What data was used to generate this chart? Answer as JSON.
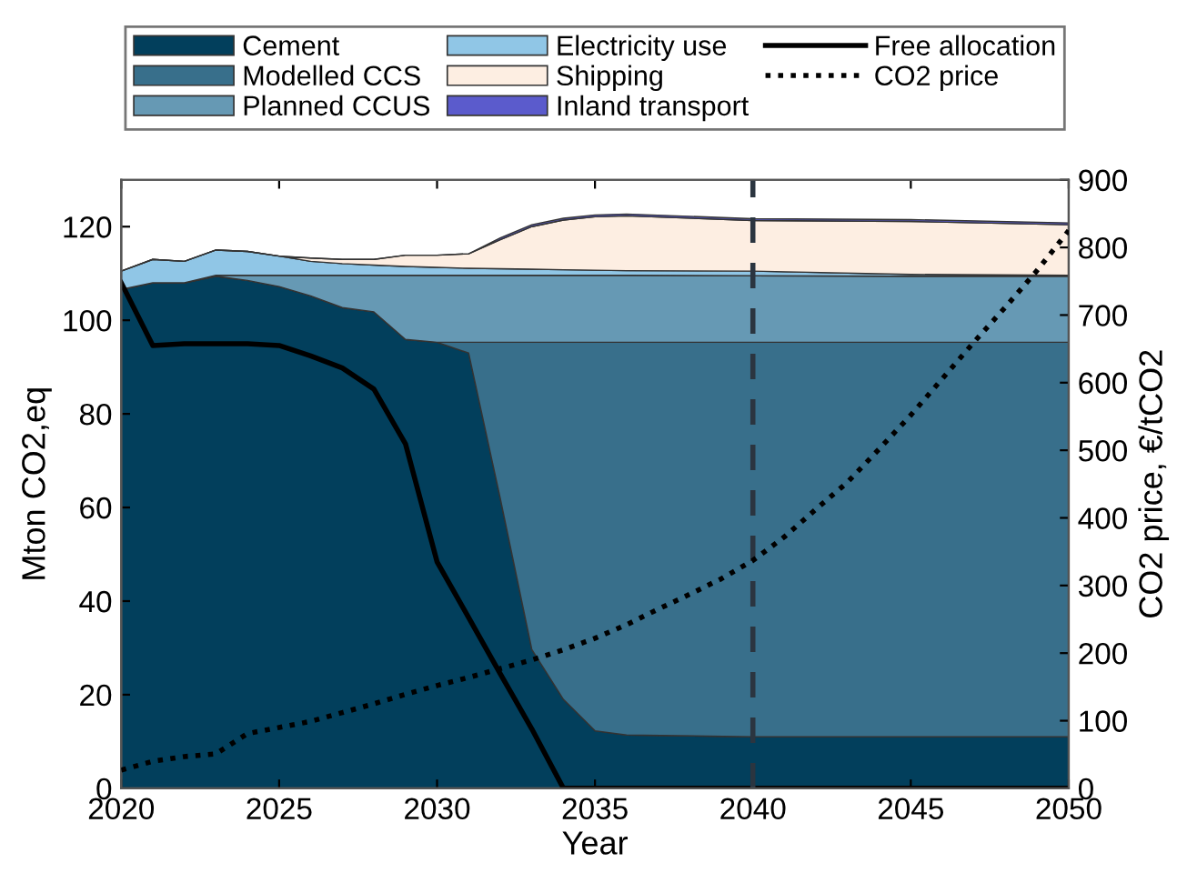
{
  "chart_data": {
    "type": "area",
    "stacked": true,
    "xlabel": "Year",
    "ylabel": "Mton CO2,eq",
    "y2label": "CO2 price, €/tCO2",
    "x": [
      2020,
      2021,
      2022,
      2023,
      2024,
      2025,
      2026,
      2027,
      2028,
      2029,
      2030,
      2031,
      2032,
      2033,
      2034,
      2035,
      2036,
      2040,
      2045,
      2050
    ],
    "series": [
      {
        "name": "Cement",
        "color": "#023f5c",
        "values": [
          106.6,
          108,
          108,
          109.4,
          108.5,
          107.2,
          105.2,
          102.7,
          101.8,
          95.9,
          95.3,
          93.0,
          62,
          29.7,
          19,
          12.3,
          11.4,
          11,
          11,
          11
        ]
      },
      {
        "name": "Modelled CCS",
        "color": "#386f8b",
        "values": [
          0,
          0,
          0,
          0,
          0,
          0,
          0,
          0,
          0,
          0,
          0,
          2.3,
          33.3,
          65.6,
          76.3,
          83.0,
          83.9,
          84.3,
          84.3,
          84.3
        ]
      },
      {
        "name": "Planned CCUS",
        "color": "#6699b4",
        "values": [
          0,
          0,
          0,
          0.2,
          1.1,
          2.4,
          4.4,
          6.9,
          7.8,
          13.7,
          14.3,
          14.3,
          14.3,
          14.3,
          14.3,
          14.3,
          14.3,
          14.2,
          14.1,
          14.1
        ]
      },
      {
        "name": "Electricity use",
        "color": "#90c6e6",
        "values": [
          3.9,
          5.0,
          4.6,
          5.4,
          5.1,
          4.1,
          3.0,
          2.5,
          2.2,
          1.9,
          1.7,
          1.5,
          1.4,
          1.3,
          1.2,
          1.1,
          1.0,
          1.0,
          0.4,
          0.2
        ]
      },
      {
        "name": "Shipping",
        "color": "#fdeee2",
        "values": [
          0,
          0,
          0,
          0,
          0,
          0,
          0.7,
          0.9,
          1.2,
          2.4,
          2.6,
          3.1,
          6.2,
          9.1,
          10.6,
          11.4,
          11.7,
          10.8,
          11.3,
          10.8
        ]
      },
      {
        "name": "Inland transport",
        "color": "#5b5bcc",
        "values": [
          0,
          0,
          0,
          0,
          0,
          0,
          0,
          0,
          0,
          0,
          0,
          0,
          0.4,
          0.4,
          0.4,
          0.4,
          0.4,
          0.4,
          0.4,
          0.4
        ]
      },
      {
        "name": "Free allocation",
        "type": "line",
        "color": "#000000",
        "line_style": "solid",
        "x": [
          2020,
          2021,
          2022,
          2023,
          2024,
          2025,
          2026,
          2027,
          2028,
          2029,
          2030,
          2031,
          2032,
          2033,
          2034,
          2050
        ],
        "values": [
          108,
          94.6,
          95,
          95,
          95,
          94.6,
          92.4,
          89.8,
          85.3,
          73.6,
          48.4,
          36.5,
          24.5,
          12.7,
          0,
          0
        ]
      },
      {
        "name": "CO2 price",
        "type": "line",
        "axis": "y2",
        "color": "#000000",
        "line_style": "dotted",
        "x": [
          2020,
          2021,
          2022,
          2023,
          2024,
          2025,
          2026,
          2027,
          2028,
          2029,
          2030,
          2031,
          2032,
          2033,
          2034,
          2035,
          2036,
          2037,
          2038,
          2039,
          2040,
          2041,
          2042,
          2043,
          2044,
          2045,
          2046,
          2047,
          2048,
          2049,
          2050
        ],
        "values": [
          27,
          40,
          47,
          51,
          81,
          90,
          99,
          112,
          125,
          139,
          152,
          164,
          177,
          190,
          205,
          222,
          242,
          265,
          287,
          310,
          337,
          372,
          413,
          453,
          502,
          552,
          606,
          660,
          712,
          766,
          825
        ]
      }
    ],
    "ref_lines": [
      {
        "axis": "x",
        "value": 2040,
        "color": "#2b3540",
        "line_style": "dashed"
      }
    ],
    "xlim": [
      2020,
      2050
    ],
    "xticks": [
      2020,
      2025,
      2030,
      2035,
      2040,
      2045,
      2050
    ],
    "ylim": [
      0,
      130
    ],
    "yticks": [
      0,
      20,
      40,
      60,
      80,
      100,
      120
    ],
    "y2lim": [
      0,
      900
    ],
    "y2ticks": [
      0,
      100,
      200,
      300,
      400,
      500,
      600,
      700,
      800,
      900
    ],
    "grid": false,
    "legend": "top"
  }
}
